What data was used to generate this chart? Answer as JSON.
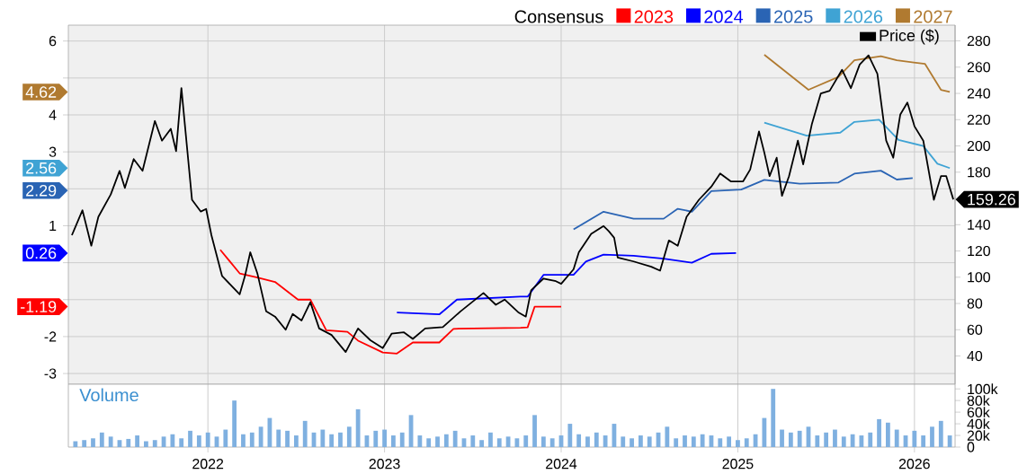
{
  "chart_data": [
    {
      "type": "line",
      "legend_title": "Consensus",
      "annotations": [
        "-1.19",
        "0.26",
        "2.29",
        "2.56",
        "4.62"
      ],
      "legend": "top right",
      "grid": true,
      "tick_labels": "y",
      "xlim": [
        2021.21,
        2026.23
      ],
      "xticks": [
        2022,
        2023,
        2024,
        2025,
        2026
      ],
      "ylim": [
        -3.29,
        6.43
      ],
      "yticks": [
        -3,
        -2,
        {
          "value": -1,
          "label": null
        },
        {
          "value": 0,
          "label": null
        },
        1,
        {
          "value": 2,
          "label": null
        },
        3,
        4,
        {
          "value": 5,
          "label": null
        },
        6
      ],
      "y2lim": [
        18.5,
        292
      ],
      "y2ticks": [
        40,
        60,
        80,
        100,
        120,
        140,
        {
          "value": 160,
          "label": null
        },
        180,
        200,
        220,
        240,
        260,
        280
      ],
      "series": [
        {
          "name": "2023",
          "color": "#ff0000",
          "x": [
            2022.07,
            2022.18,
            2022.28,
            2022.38,
            2022.51,
            2022.58,
            2022.67,
            2022.79,
            2022.85,
            2022.99,
            2023.07,
            2023.16,
            2023.31,
            2023.39,
            2023.77,
            2023.81,
            2023.85,
            2024.0
          ],
          "values": [
            0.35,
            -0.29,
            -0.4,
            -0.52,
            -1.0,
            -1.0,
            -1.83,
            -1.87,
            -2.11,
            -2.43,
            -2.46,
            -2.16,
            -2.16,
            -1.79,
            -1.76,
            -1.75,
            -1.19,
            -1.19
          ]
        },
        {
          "name": "2024",
          "color": "#0000ff",
          "x": [
            2023.07,
            2023.31,
            2023.41,
            2023.77,
            2023.81,
            2023.9,
            2024.07,
            2024.14,
            2024.24,
            2024.41,
            2024.58,
            2024.74,
            2024.85,
            2024.99
          ],
          "values": [
            -1.35,
            -1.4,
            -1.0,
            -0.92,
            -0.92,
            -0.33,
            -0.33,
            0.03,
            0.22,
            0.19,
            0.11,
            0.0,
            0.24,
            0.26
          ]
        },
        {
          "name": "2025",
          "color": "#2a64b4",
          "x": [
            2024.07,
            2024.24,
            2024.41,
            2024.58,
            2024.66,
            2024.74,
            2024.85,
            2025.02,
            2025.15,
            2025.35,
            2025.57,
            2025.66,
            2025.81,
            2025.9,
            2025.99
          ],
          "values": [
            0.9,
            1.38,
            1.19,
            1.19,
            1.46,
            1.38,
            1.94,
            1.98,
            2.24,
            2.14,
            2.17,
            2.41,
            2.49,
            2.25,
            2.29
          ]
        },
        {
          "name": "2026",
          "color": "#3fa3d4",
          "x": [
            2025.15,
            2025.39,
            2025.58,
            2025.66,
            2025.8,
            2025.91,
            2026.05,
            2026.13,
            2026.2
          ],
          "values": [
            3.79,
            3.44,
            3.52,
            3.81,
            3.87,
            3.32,
            3.16,
            2.68,
            2.56
          ]
        },
        {
          "name": "2027",
          "color": "#b07a30",
          "x": [
            2025.15,
            2025.4,
            2025.57,
            2025.66,
            2025.81,
            2025.9,
            2026.06,
            2026.15,
            2026.2
          ],
          "values": [
            5.63,
            4.68,
            5.03,
            5.48,
            5.59,
            5.48,
            5.38,
            4.68,
            4.62
          ]
        },
        {
          "name": "Price ($)",
          "color": "#000000",
          "axis": "y2",
          "x": [
            2021.23,
            2021.29,
            2021.34,
            2021.38,
            2021.45,
            2021.5,
            2021.53,
            2021.58,
            2021.63,
            2021.7,
            2021.74,
            2021.79,
            2021.82,
            2021.85,
            2021.91,
            2021.96,
            2021.99,
            2022.02,
            2022.08,
            2022.13,
            2022.18,
            2022.21,
            2022.24,
            2022.28,
            2022.33,
            2022.38,
            2022.44,
            2022.48,
            2022.53,
            2022.58,
            2022.63,
            2022.7,
            2022.78,
            2022.85,
            2022.92,
            2022.99,
            2023.04,
            2023.11,
            2023.16,
            2023.23,
            2023.33,
            2023.43,
            2023.56,
            2023.63,
            2023.68,
            2023.76,
            2023.8,
            2023.83,
            2023.9,
            2023.97,
            2024.0,
            2024.07,
            2024.1,
            2024.17,
            2024.24,
            2024.27,
            2024.3,
            2024.32,
            2024.41,
            2024.51,
            2024.56,
            2024.61,
            2024.66,
            2024.71,
            2024.78,
            2024.85,
            2024.9,
            2024.96,
            2025.03,
            2025.07,
            2025.12,
            2025.15,
            2025.18,
            2025.22,
            2025.25,
            2025.29,
            2025.34,
            2025.37,
            2025.42,
            2025.47,
            2025.52,
            2025.59,
            2025.64,
            2025.69,
            2025.74,
            2025.79,
            2025.84,
            2025.88,
            2025.92,
            2025.96,
            2026.0,
            2026.05,
            2026.11,
            2026.15,
            2026.18,
            2026.22
          ],
          "values": [
            132,
            151,
            124,
            146,
            163,
            181,
            168,
            190,
            181,
            219,
            204,
            213,
            196,
            244,
            159,
            150,
            152,
            132,
            101,
            94,
            87,
            101,
            119,
            103,
            74,
            70,
            60,
            72,
            67,
            81,
            61,
            56,
            43,
            61,
            52,
            46,
            57,
            58,
            53,
            61,
            62,
            74,
            88,
            79,
            83,
            73,
            70,
            90,
            99,
            97,
            95,
            106,
            119,
            133,
            139,
            135,
            130,
            115,
            112,
            108,
            105,
            128,
            124,
            146,
            159,
            169,
            179,
            173,
            173,
            182,
            211,
            195,
            177,
            191,
            162,
            177,
            204,
            186,
            217,
            240,
            242,
            258,
            244,
            262,
            269,
            255,
            204,
            191,
            224,
            233,
            215,
            204,
            159,
            177,
            177,
            159.26
          ],
          "value_labels": [
            null,
            null,
            null,
            null,
            null,
            null,
            null,
            null,
            null,
            null,
            null,
            null,
            null,
            null,
            null,
            null,
            null,
            null,
            null,
            null,
            null,
            null,
            null,
            null,
            null,
            null,
            null,
            null,
            null,
            null,
            null,
            null,
            null,
            null,
            null,
            null,
            null,
            null,
            null,
            null,
            null,
            null,
            null,
            null,
            null,
            null,
            null,
            null,
            null,
            null,
            null,
            null,
            null,
            null,
            null,
            null,
            null,
            null,
            null,
            null,
            null,
            null,
            null,
            null,
            null,
            null,
            null,
            null,
            null,
            null,
            null,
            null,
            null,
            null,
            null,
            null,
            null,
            null,
            null,
            null,
            null,
            null,
            null,
            null,
            null,
            null,
            null,
            null,
            null,
            null,
            null,
            null,
            null,
            null,
            null,
            "159.26"
          ]
        }
      ]
    },
    {
      "type": "bar",
      "title": "Volume",
      "color": "#7fb0e0",
      "grid": "x",
      "xlim": [
        2021.21,
        2026.23
      ],
      "xticks": [
        2022,
        2023,
        2024,
        2025,
        2026
      ],
      "ylim": [
        0,
        108000
      ],
      "yticks": [
        {
          "value": 0,
          "label": "0"
        },
        {
          "value": 20000,
          "label": "20k"
        },
        {
          "value": 40000,
          "label": "40k"
        },
        {
          "value": 60000,
          "label": "60k"
        },
        {
          "value": 80000,
          "label": "80k"
        },
        {
          "value": 100000,
          "label": "100k"
        }
      ],
      "x": [
        2021.25,
        2021.3,
        2021.35,
        2021.4,
        2021.45,
        2021.5,
        2021.55,
        2021.6,
        2021.65,
        2021.7,
        2021.75,
        2021.8,
        2021.85,
        2021.9,
        2021.95,
        2022.0,
        2022.05,
        2022.1,
        2022.15,
        2022.2,
        2022.25,
        2022.3,
        2022.35,
        2022.4,
        2022.45,
        2022.5,
        2022.55,
        2022.6,
        2022.65,
        2022.7,
        2022.75,
        2022.8,
        2022.85,
        2022.9,
        2022.95,
        2023.0,
        2023.05,
        2023.1,
        2023.15,
        2023.2,
        2023.25,
        2023.3,
        2023.35,
        2023.4,
        2023.45,
        2023.5,
        2023.55,
        2023.6,
        2023.65,
        2023.7,
        2023.75,
        2023.8,
        2023.85,
        2023.9,
        2023.95,
        2024.0,
        2024.05,
        2024.1,
        2024.15,
        2024.2,
        2024.25,
        2024.3,
        2024.35,
        2024.4,
        2024.45,
        2024.5,
        2024.55,
        2024.6,
        2024.65,
        2024.7,
        2024.75,
        2024.8,
        2024.85,
        2024.9,
        2024.95,
        2025.0,
        2025.05,
        2025.1,
        2025.15,
        2025.2,
        2025.25,
        2025.3,
        2025.35,
        2025.4,
        2025.45,
        2025.5,
        2025.55,
        2025.6,
        2025.65,
        2025.7,
        2025.75,
        2025.8,
        2025.85,
        2025.9,
        2025.95,
        2026.0,
        2026.05,
        2026.1,
        2026.15,
        2026.2
      ],
      "values": [
        10000,
        12000,
        15000,
        25000,
        18000,
        12000,
        14000,
        20000,
        10000,
        12000,
        18000,
        22000,
        15000,
        28000,
        20000,
        25000,
        18000,
        30000,
        80000,
        22000,
        25000,
        35000,
        50000,
        30000,
        28000,
        20000,
        45000,
        25000,
        30000,
        22000,
        25000,
        35000,
        65000,
        20000,
        28000,
        30000,
        20000,
        25000,
        55000,
        20000,
        15000,
        18000,
        22000,
        28000,
        15000,
        20000,
        12000,
        25000,
        15000,
        18000,
        15000,
        20000,
        55000,
        18000,
        15000,
        20000,
        40000,
        22000,
        18000,
        25000,
        20000,
        40000,
        18000,
        15000,
        20000,
        18000,
        25000,
        35000,
        15000,
        20000,
        18000,
        22000,
        20000,
        15000,
        18000,
        12000,
        15000,
        22000,
        50000,
        100000,
        30000,
        25000,
        28000,
        35000,
        20000,
        25000,
        30000,
        18000,
        22000,
        20000,
        25000,
        48000,
        42000,
        30000,
        20000,
        28000,
        20000,
        35000,
        45000,
        20000
      ]
    }
  ]
}
